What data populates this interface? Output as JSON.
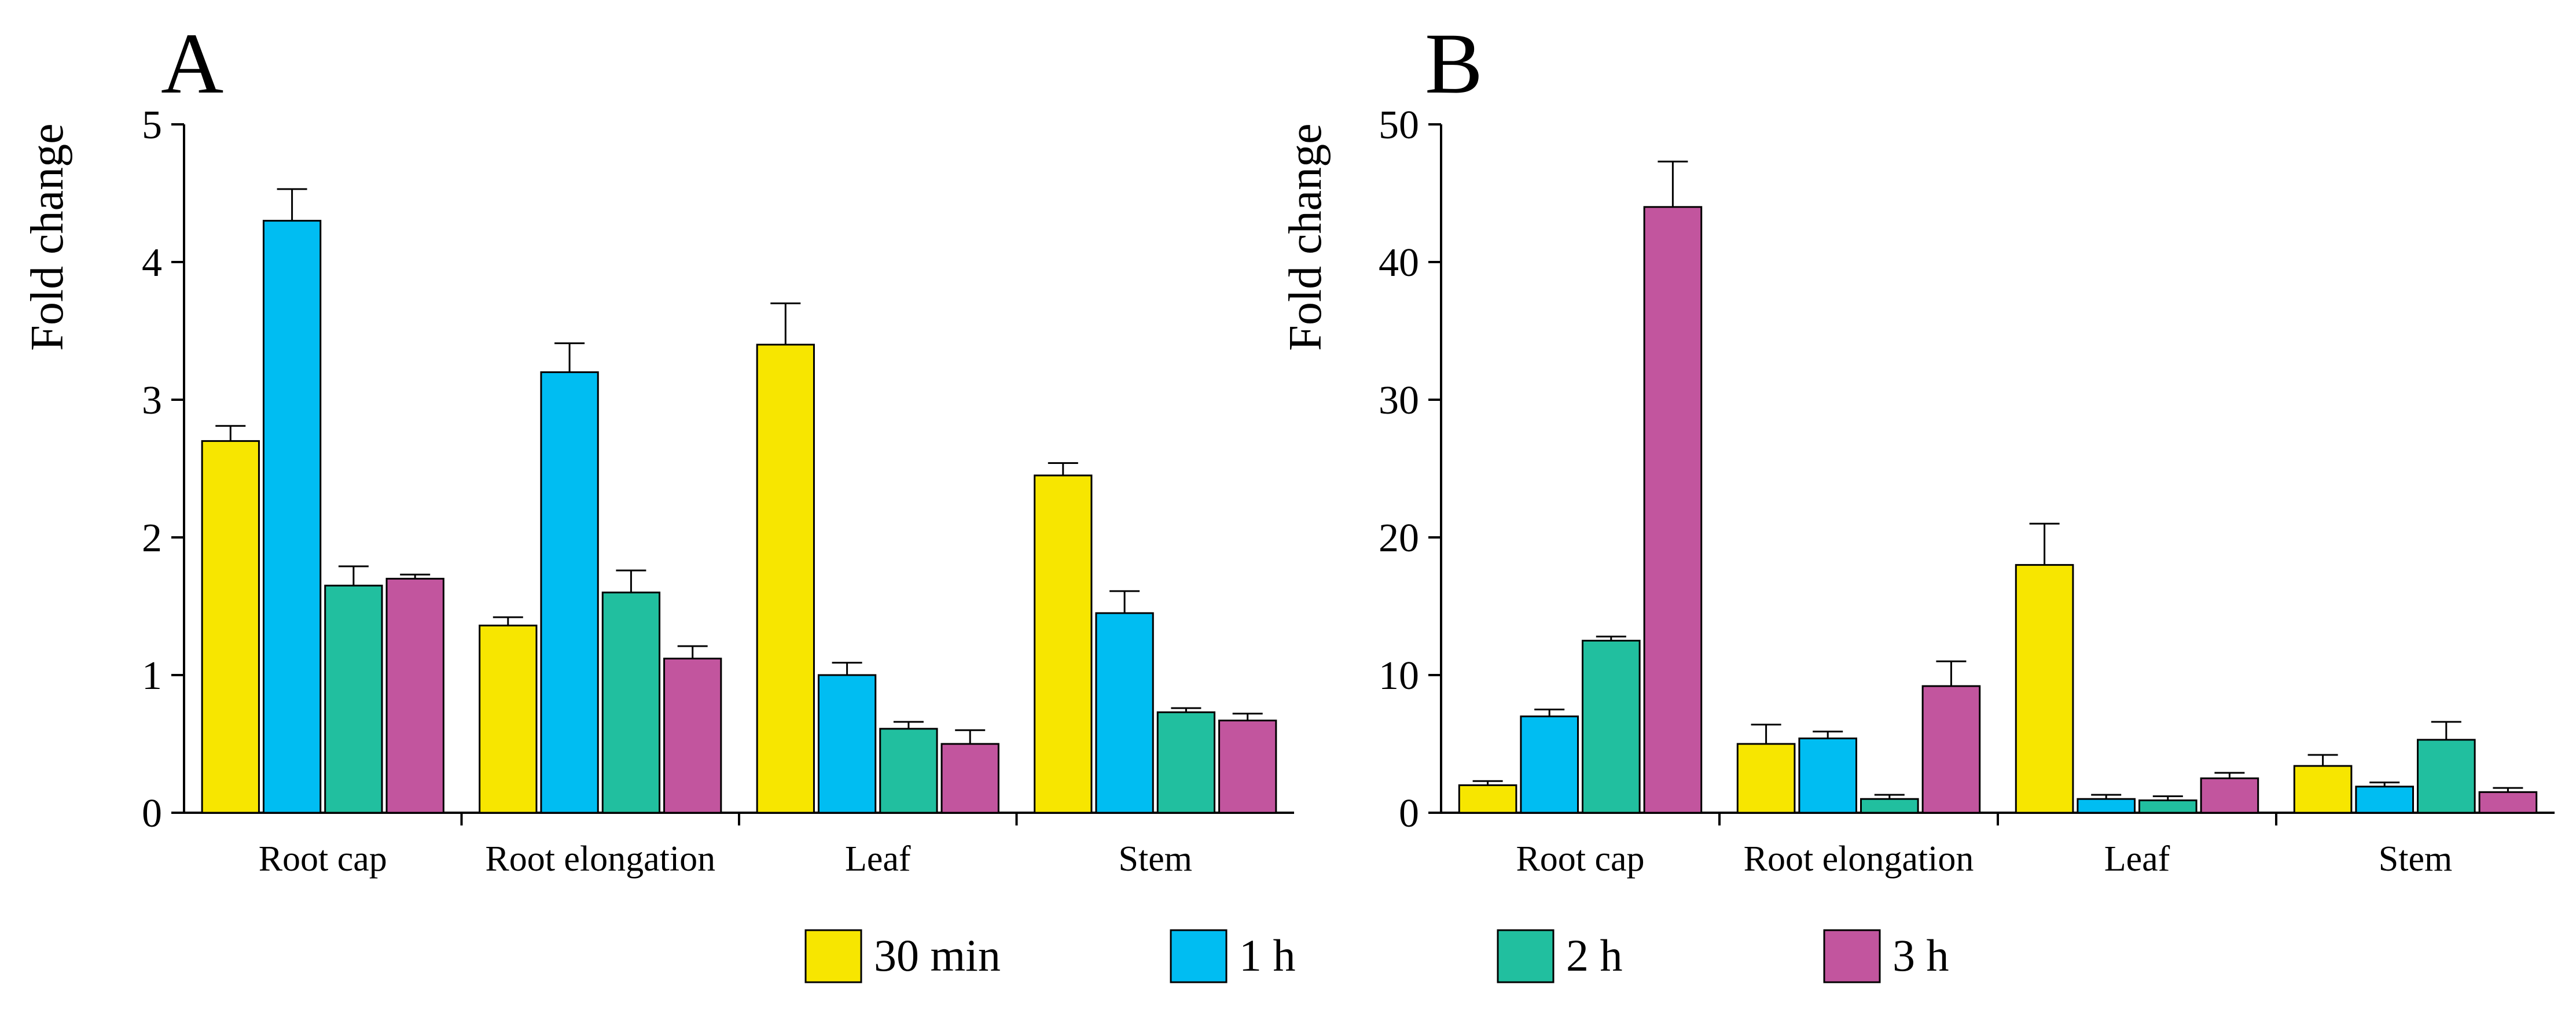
{
  "chart_data": [
    {
      "type": "bar",
      "panel_label": "A",
      "title": "",
      "xlabel": "",
      "ylabel": "Fold change",
      "ylim": [
        0,
        5
      ],
      "yticks": [
        0,
        1,
        2,
        3,
        4,
        5
      ],
      "categories": [
        "Root cap",
        "Root elongation",
        "Leaf",
        "Stem"
      ],
      "series": [
        {
          "name": "30 min",
          "values": [
            2.7,
            1.36,
            3.4,
            2.45
          ],
          "errors": [
            0.11,
            0.06,
            0.3,
            0.09
          ]
        },
        {
          "name": "1 h",
          "values": [
            4.3,
            3.2,
            1.0,
            1.45
          ],
          "errors": [
            0.23,
            0.21,
            0.09,
            0.16
          ]
        },
        {
          "name": "2 h",
          "values": [
            1.65,
            1.6,
            0.61,
            0.73
          ],
          "errors": [
            0.14,
            0.16,
            0.05,
            0.03
          ]
        },
        {
          "name": "3 h",
          "values": [
            1.7,
            1.12,
            0.5,
            0.67
          ],
          "errors": [
            0.03,
            0.09,
            0.1,
            0.05
          ]
        }
      ],
      "error_bars": true,
      "grid": false
    },
    {
      "type": "bar",
      "panel_label": "B",
      "title": "",
      "xlabel": "",
      "ylabel": "Fold change",
      "ylim": [
        0,
        50
      ],
      "yticks": [
        0,
        10,
        20,
        30,
        40,
        50
      ],
      "categories": [
        "Root cap",
        "Root elongation",
        "Leaf",
        "Stem"
      ],
      "series": [
        {
          "name": "30 min",
          "values": [
            2.0,
            5.0,
            18.0,
            3.4
          ],
          "errors": [
            0.3,
            1.4,
            3.0,
            0.8
          ]
        },
        {
          "name": "1 h",
          "values": [
            7.0,
            5.4,
            1.0,
            1.9
          ],
          "errors": [
            0.5,
            0.5,
            0.3,
            0.3
          ]
        },
        {
          "name": "2 h",
          "values": [
            12.5,
            1.0,
            0.9,
            5.3
          ],
          "errors": [
            0.3,
            0.3,
            0.3,
            1.3
          ]
        },
        {
          "name": "3 h",
          "values": [
            44.0,
            9.2,
            2.5,
            1.5
          ],
          "errors": [
            3.3,
            1.8,
            0.4,
            0.3
          ]
        }
      ],
      "error_bars": true,
      "grid": false
    }
  ],
  "legend": {
    "placement": "bottom-center",
    "entries": [
      {
        "label": "30 min",
        "color": "#f7e600"
      },
      {
        "label": "1 h",
        "color": "#00bdf2"
      },
      {
        "label": "2 h",
        "color": "#21bf9f"
      },
      {
        "label": "3 h",
        "color": "#c2559e"
      }
    ]
  }
}
